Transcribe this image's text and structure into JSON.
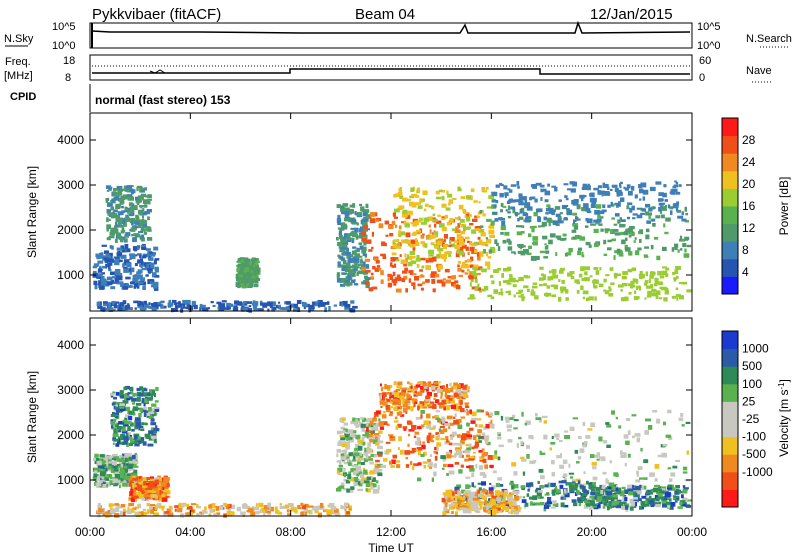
{
  "header": {
    "station": "Pykkvibaer (fitACF)",
    "beam": "Beam 04",
    "date": "12/Jan/2015"
  },
  "aux": {
    "nsky_label": "N.Sky",
    "nsky_ticks": [
      "10^5",
      "10^0"
    ],
    "nsearch_label": "N.Search",
    "nsearch_ticks": [
      "10^5",
      "10^0"
    ],
    "freq_label": "Freq.",
    "freq_unit": "[MHz]",
    "freq_ticks": [
      "18",
      "8"
    ],
    "nave_label": "Nave",
    "nave_ticks": [
      "60",
      "0"
    ],
    "cpid_label": "CPID",
    "cpid_text": "normal (fast stereo) 153"
  },
  "colors": {
    "power_scale": [
      "#1a1aff",
      "#2555b0",
      "#3f7fb8",
      "#4f9a6a",
      "#5ab24f",
      "#9acd32",
      "#f0c020",
      "#f08a20",
      "#f05018",
      "#ff1a1a"
    ],
    "velocity_scale": [
      "#ff1a1a",
      "#f05018",
      "#f08a20",
      "#f0c020",
      "#c8c8c0",
      "#c8c8c0",
      "#5ab24f",
      "#2e8b57",
      "#2a5ba8",
      "#1a3ad0"
    ],
    "frame": "#000000"
  },
  "chart_data": [
    {
      "type": "heatmap",
      "name": "power",
      "xlabel": "Time UT",
      "ylabel": "Slant Range [km]",
      "x_ticks": [
        "00:00",
        "04:00",
        "08:00",
        "12:00",
        "16:00",
        "20:00",
        "00:00"
      ],
      "xlim_hours": [
        0,
        24
      ],
      "y_ticks": [
        1000,
        2000,
        3000,
        4000
      ],
      "ylim": [
        200,
        4600
      ],
      "colorbar_label": "Power [dB]",
      "colorbar_ticks": [
        4,
        8,
        12,
        16,
        20,
        24,
        28
      ],
      "colorbar_range": [
        0,
        32
      ],
      "regions": [
        {
          "t": [
            0.1,
            2.6
          ],
          "r": [
            750,
            1700
          ],
          "level": 7
        },
        {
          "t": [
            0.6,
            2.3
          ],
          "r": [
            1800,
            3000
          ],
          "level": 10
        },
        {
          "t": [
            0.2,
            10.5
          ],
          "r": [
            250,
            450
          ],
          "level": 6
        },
        {
          "t": [
            5.8,
            6.6
          ],
          "r": [
            800,
            1400
          ],
          "level": 12
        },
        {
          "t": [
            9.8,
            11.0
          ],
          "r": [
            800,
            2600
          ],
          "level": 10
        },
        {
          "t": [
            10.8,
            15.5
          ],
          "r": [
            700,
            2400
          ],
          "level": 26
        },
        {
          "t": [
            12.0,
            16.0
          ],
          "r": [
            1200,
            3000
          ],
          "level": 20
        },
        {
          "t": [
            15.5,
            23.8
          ],
          "r": [
            1400,
            2600
          ],
          "level": 12
        },
        {
          "t": [
            15.0,
            23.8
          ],
          "r": [
            500,
            1200
          ],
          "level": 18
        },
        {
          "t": [
            16.0,
            23.6
          ],
          "r": [
            2200,
            3100
          ],
          "level": 8
        }
      ]
    },
    {
      "type": "heatmap",
      "name": "velocity",
      "xlabel": "Time UT",
      "ylabel": "Slant Range [km]",
      "x_ticks": [
        "00:00",
        "04:00",
        "08:00",
        "12:00",
        "16:00",
        "20:00",
        "00:00"
      ],
      "xlim_hours": [
        0,
        24
      ],
      "y_ticks": [
        1000,
        2000,
        3000,
        4000
      ],
      "ylim": [
        200,
        4600
      ],
      "colorbar_label": "Velocity [m s",
      "colorbar_label_sup": "-1",
      "colorbar_label_end": "]",
      "colorbar_ticks": [
        "1000",
        "500",
        "100",
        "25",
        "-25",
        "-100",
        "-500",
        "-1000"
      ],
      "regions": [
        {
          "t": [
            0.1,
            1.8
          ],
          "r": [
            900,
            1600
          ],
          "level": 6
        },
        {
          "t": [
            0.8,
            2.6
          ],
          "r": [
            1800,
            3100
          ],
          "level": 7
        },
        {
          "t": [
            1.5,
            3.0
          ],
          "r": [
            600,
            1100
          ],
          "level": 2
        },
        {
          "t": [
            0.2,
            10.5
          ],
          "r": [
            250,
            500
          ],
          "level": 3
        },
        {
          "t": [
            9.8,
            11.5
          ],
          "r": [
            800,
            2400
          ],
          "level": 5
        },
        {
          "t": [
            11.0,
            16.0
          ],
          "r": [
            1300,
            2600
          ],
          "level": 2
        },
        {
          "t": [
            11.5,
            15.0
          ],
          "r": [
            2600,
            3200
          ],
          "level": 2
        },
        {
          "t": [
            13.0,
            23.8
          ],
          "r": [
            1000,
            2600
          ],
          "level": 5
        },
        {
          "t": [
            14.5,
            21.0
          ],
          "r": [
            400,
            1000
          ],
          "level": 7
        },
        {
          "t": [
            14.0,
            17.0
          ],
          "r": [
            300,
            800
          ],
          "level": 3
        },
        {
          "t": [
            19.5,
            23.8
          ],
          "r": [
            400,
            900
          ],
          "level": 7
        }
      ]
    }
  ]
}
